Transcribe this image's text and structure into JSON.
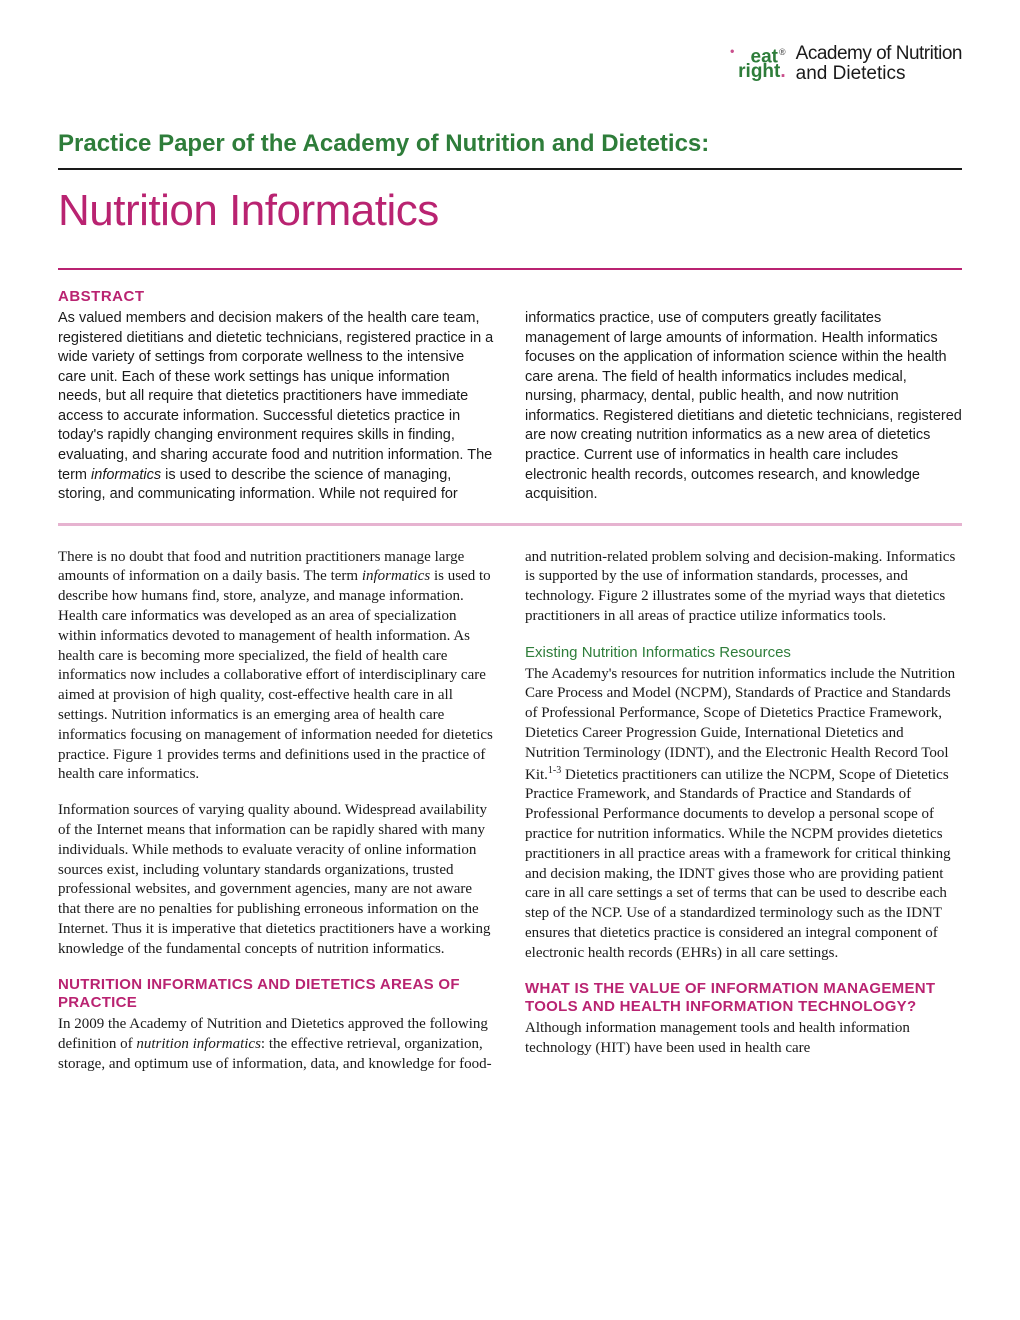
{
  "logo": {
    "mark_line1": "eat",
    "mark_reg": "®",
    "mark_line2_a": "right",
    "mark_line2_b": ".",
    "text_line1": "Academy of Nutrition",
    "text_line2": "and Dietetics"
  },
  "supertitle": "Practice Paper of the Academy of Nutrition and Dietetics:",
  "main_title": "Nutrition Informatics",
  "abstract_label": "ABSTRACT",
  "abstract_html": "As valued members and decision makers of the health care team, registered dietitians and dietetic technicians, registered practice in a wide variety of settings from corporate wellness to the intensive care unit. Each of these work settings has unique information needs, but all require that dietetics practitioners have immediate access to accurate information. Successful dietetics practice in today's rapidly changing environment requires skills in finding, evaluating, and sharing accurate food and nutrition information. The term <em>informatics</em> is used to describe the science of managing, storing, and communicating information. While not required for informatics practice, use of computers greatly facilitates management of large amounts of information. Health informatics focuses on the application of information science within the health care arena. The field of health informatics includes medical, nursing, pharmacy, dental, public health, and now nutrition informatics. Registered dietitians and dietetic technicians, registered are now creating nutrition informatics as a new area of dietetics practice. Current use of informatics in health care includes electronic health records, outcomes research, and knowledge acquisition.",
  "body": {
    "p1": "There is no doubt that food and nutrition practitioners manage large amounts of information on a daily basis. The term <em>informatics</em> is used to describe how humans find, store, analyze, and manage information. Health care informatics was developed as an area of specialization within informatics devoted to management of health information. As health care is becoming more specialized, the field of health care informatics now includes a collaborative effort of interdisciplinary care aimed at provision of high quality, cost-effective health care in all settings. Nutrition informatics is an emerging area of health care informatics focusing on management of information needed for dietetics practice. Figure 1 provides terms and definitions used in the practice of health care informatics.",
    "p2": "Information sources of varying quality abound. Widespread availability of the Internet means that information can be rapidly shared with many individuals. While methods to evaluate veracity of online information sources exist, including voluntary standards organizations, trusted professional websites, and government agencies, many are not aware that there are no penalties for publishing erroneous information on the Internet. Thus it is imperative that dietetics practitioners have a working knowledge of the fundamental concepts of nutrition informatics.",
    "h1": "NUTRITION INFORMATICS AND DIETETICS AREAS OF PRACTICE",
    "p3": "In 2009 the Academy of Nutrition and Dietetics approved the following definition of <em>nutrition informatics</em>: the effective retrieval, organization, storage, and optimum use of information, data, and knowledge for food- and nutrition-related problem solving and decision-making. Informatics is supported by the use of information standards, processes, and technology. Figure 2 illustrates some of the myriad ways that dietetics practitioners in all areas of practice utilize informatics tools.",
    "sh1": "Existing Nutrition Informatics Resources",
    "p4": "The Academy's resources for nutrition informatics include the Nutrition Care Process and Model (NCPM), Standards of Practice and Standards of Professional Performance, Scope of Dietetics Practice Framework, Dietetics Career Progression Guide, International Dietetics and Nutrition Terminology (IDNT), and the Electronic Health Record Tool Kit.<span class=\"sup\">1-3</span> Dietetics practitioners can utilize the NCPM, Scope of Dietetics Practice Framework, and Standards of Practice and Standards of Professional Performance documents to develop a personal scope of practice for nutrition informatics. While the NCPM provides dietetics practitioners in all practice areas with a framework for critical thinking and decision making, the IDNT gives those who are providing patient care in all care settings a set of terms that can be used to describe each step of the NCP. Use of a standardized terminology such as the IDNT ensures that dietetics practice is considered an integral component of electronic health records (EHRs) in all care settings.",
    "h2": "WHAT IS THE VALUE OF INFORMATION MANAGEMENT TOOLS AND HEALTH INFORMATION TECHNOLOGY?",
    "p5": "Although information management tools and health information technology (HIT) have been used in health care"
  },
  "colors": {
    "magenta": "#b92371",
    "green": "#2e7d3a",
    "pink_rule": "#e6b3d0",
    "black": "#1a1a1a",
    "bg": "#ffffff"
  },
  "fonts": {
    "sans": "Arial, Helvetica, sans-serif",
    "serif": "Georgia, Times New Roman, serif",
    "title_size_pt": 44,
    "supertitle_size_pt": 24,
    "body_size_pt": 15,
    "abstract_size_pt": 14.5
  }
}
